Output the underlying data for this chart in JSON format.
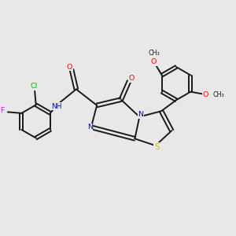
{
  "background_color": "#e8e8e8",
  "bond_color": "#1a1a1a",
  "atom_colors": {
    "O": "#ff0000",
    "N": "#0000ee",
    "S": "#ccbb00",
    "Cl": "#00bb00",
    "F": "#ee00ee",
    "C": "#1a1a1a"
  },
  "figsize": [
    3.0,
    3.0
  ],
  "dpi": 100,
  "xlim": [
    0,
    10
  ],
  "ylim": [
    0,
    10
  ],
  "lw": 1.4,
  "sep": 0.08,
  "fs": 6.8
}
